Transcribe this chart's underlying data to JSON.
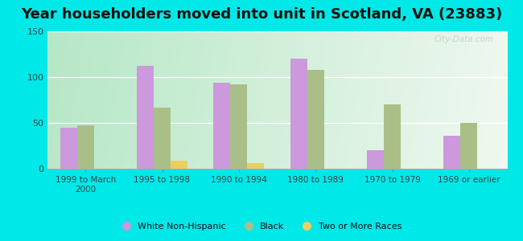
{
  "title": "Year householders moved into unit in Scotland, VA (23883)",
  "categories": [
    "1999 to March\n2000",
    "1995 to 1998",
    "1990 to 1994",
    "1980 to 1989",
    "1970 to 1979",
    "1969 or earlier"
  ],
  "series": [
    {
      "label": "White Non-Hispanic",
      "color": "#cc99dd",
      "values": [
        45,
        112,
        94,
        120,
        20,
        36
      ]
    },
    {
      "label": "Black",
      "color": "#aabf88",
      "values": [
        47,
        67,
        92,
        108,
        70,
        50
      ]
    },
    {
      "label": "Two or More Races",
      "color": "#e8d060",
      "values": [
        0,
        9,
        6,
        0,
        0,
        0
      ]
    }
  ],
  "ylim": [
    0,
    150
  ],
  "yticks": [
    0,
    50,
    100,
    150
  ],
  "background_color": "#00e8e8",
  "plot_bg_left": "#b8e8c8",
  "plot_bg_right": "#f0f8f0",
  "bar_width": 0.22,
  "title_fontsize": 13,
  "watermark": "City-Data.com"
}
